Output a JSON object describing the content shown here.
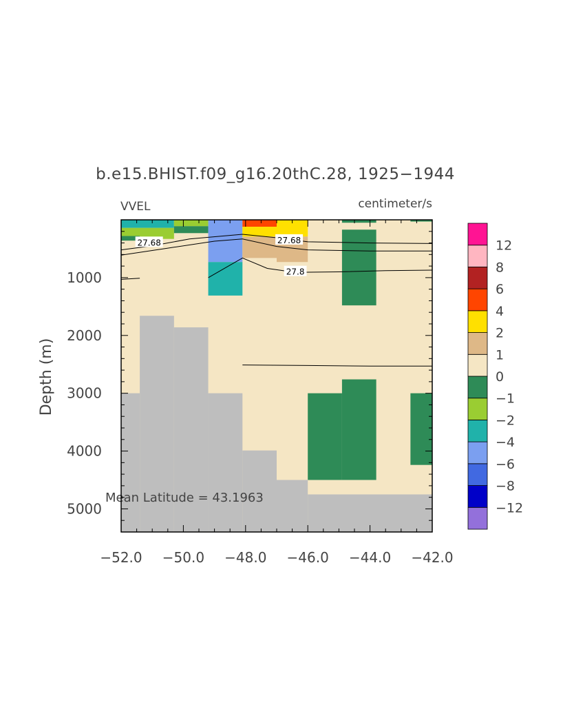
{
  "chart_data": {
    "type": "heatmap",
    "title": "b.e15.BHIST.f09_g16.20thC.28, 1925−1944",
    "left_label": "VVEL",
    "right_label": "centimeter/s",
    "ylabel": "Depth (m)",
    "xlabel": "",
    "xlim": [
      -52,
      -42
    ],
    "ylim_depth": [
      0,
      5400
    ],
    "xticks": [
      "−52.0",
      "−50.0",
      "−48.0",
      "−46.0",
      "−44.0",
      "−42.0"
    ],
    "yticks": [
      "1000",
      "2000",
      "3000",
      "4000",
      "5000"
    ],
    "annotation": "Mean Latitude = 43.1963",
    "background_color": "#f5e6c4",
    "land_color": "#bebebe",
    "colorbar": {
      "colors": [
        "#9370db",
        "#0000c8",
        "#4169e1",
        "#7b9ff0",
        "#20b2aa",
        "#9acd32",
        "#2e8b57",
        "#f5e6c4",
        "#deb887",
        "#ffe000",
        "#ff4500",
        "#b22222",
        "#ffb6c1",
        "#ff1493"
      ],
      "labels": [
        "−12",
        "−8",
        "−6",
        "−4",
        "−2",
        "−1",
        "0",
        "1",
        "2",
        "4",
        "6",
        "8",
        "12"
      ]
    },
    "land_cells": [
      {
        "x0": -52.0,
        "x1": -51.4,
        "d0": 3000,
        "d1": 5400
      },
      {
        "x0": -51.4,
        "x1": -50.3,
        "d0": 1660,
        "d1": 5400
      },
      {
        "x0": -50.3,
        "x1": -49.2,
        "d0": 1860,
        "d1": 5400
      },
      {
        "x0": -49.2,
        "x1": -48.1,
        "d0": 3000,
        "d1": 5400
      },
      {
        "x0": -48.1,
        "x1": -47.0,
        "d0": 3990,
        "d1": 5400
      },
      {
        "x0": -47.0,
        "x1": -46.0,
        "d0": 4500,
        "d1": 5400
      },
      {
        "x0": -46.0,
        "x1": -42.0,
        "d0": 4750,
        "d1": 5400
      }
    ],
    "cells": [
      {
        "x0": -52.0,
        "x1": -50.3,
        "d0": 0,
        "d1": 140,
        "color": "#20b2aa"
      },
      {
        "x0": -52.0,
        "x1": -50.3,
        "d0": 140,
        "d1": 280,
        "color": "#9acd32"
      },
      {
        "x0": -52.0,
        "x1": -51.4,
        "d0": 280,
        "d1": 360,
        "color": "#2e8b57"
      },
      {
        "x0": -51.4,
        "x1": -50.3,
        "d0": 280,
        "d1": 330,
        "color": "#9acd32"
      },
      {
        "x0": -50.3,
        "x1": -49.2,
        "d0": 0,
        "d1": 110,
        "color": "#9acd32"
      },
      {
        "x0": -50.3,
        "x1": -49.2,
        "d0": 110,
        "d1": 230,
        "color": "#2e8b57"
      },
      {
        "x0": -49.2,
        "x1": -48.1,
        "d0": 0,
        "d1": 730,
        "color": "#7b9ff0"
      },
      {
        "x0": -49.2,
        "x1": -48.1,
        "d0": 730,
        "d1": 1310,
        "color": "#20b2aa"
      },
      {
        "x0": -48.1,
        "x1": -47.0,
        "d0": 0,
        "d1": 120,
        "color": "#ff4500"
      },
      {
        "x0": -48.1,
        "x1": -47.0,
        "d0": 120,
        "d1": 290,
        "color": "#ffe000"
      },
      {
        "x0": -48.1,
        "x1": -47.0,
        "d0": 290,
        "d1": 660,
        "color": "#deb887"
      },
      {
        "x0": -47.0,
        "x1": -46.0,
        "d0": 0,
        "d1": 290,
        "color": "#ffe000"
      },
      {
        "x0": -47.0,
        "x1": -46.0,
        "d0": 290,
        "d1": 730,
        "color": "#deb887"
      },
      {
        "x0": -44.9,
        "x1": -43.8,
        "d0": 0,
        "d1": 50,
        "color": "#2e8b57"
      },
      {
        "x0": -42.7,
        "x1": -42.0,
        "d0": 0,
        "d1": 30,
        "color": "#2e8b57"
      },
      {
        "x0": -44.9,
        "x1": -43.8,
        "d0": 170,
        "d1": 1480,
        "color": "#2e8b57"
      },
      {
        "x0": -46.0,
        "x1": -44.9,
        "d0": 3000,
        "d1": 4500,
        "color": "#2e8b57"
      },
      {
        "x0": -44.9,
        "x1": -43.8,
        "d0": 2760,
        "d1": 4500,
        "color": "#2e8b57"
      },
      {
        "x0": -42.7,
        "x1": -42.0,
        "d0": 3000,
        "d1": 4240,
        "color": "#2e8b57"
      }
    ],
    "contours": [
      {
        "label": "",
        "points": [
          [
            -52.0,
            520
          ],
          [
            -51.0,
            450
          ],
          [
            -49.8,
            330
          ],
          [
            -48.1,
            250
          ],
          [
            -47.0,
            310
          ],
          [
            -46.0,
            380
          ],
          [
            -44.0,
            400
          ],
          [
            -42.0,
            410
          ]
        ]
      },
      {
        "label": "",
        "points": [
          [
            -52.0,
            610
          ],
          [
            -50.5,
            490
          ],
          [
            -49.0,
            370
          ],
          [
            -48.1,
            330
          ],
          [
            -47.0,
            460
          ],
          [
            -46.0,
            520
          ],
          [
            -44.0,
            540
          ],
          [
            -42.0,
            540
          ]
        ]
      },
      {
        "label": "",
        "points": [
          [
            -49.2,
            1000
          ],
          [
            -48.1,
            660
          ],
          [
            -47.3,
            840
          ],
          [
            -46.4,
            910
          ],
          [
            -45.0,
            900
          ],
          [
            -43.5,
            880
          ],
          [
            -42.0,
            870
          ]
        ]
      },
      {
        "label": "",
        "points": [
          [
            -52.0,
            1030
          ],
          [
            -51.4,
            1010
          ]
        ]
      },
      {
        "label": "",
        "points": [
          [
            -48.1,
            2510
          ],
          [
            -46.0,
            2520
          ],
          [
            -44.0,
            2530
          ],
          [
            -42.0,
            2530
          ]
        ]
      }
    ],
    "contour_labels": [
      {
        "text": "27.68",
        "x": -51.1,
        "d": 385
      },
      {
        "text": "27.68",
        "x": -46.6,
        "d": 345
      },
      {
        "text": "27.8",
        "x": -46.4,
        "d": 890
      }
    ]
  }
}
